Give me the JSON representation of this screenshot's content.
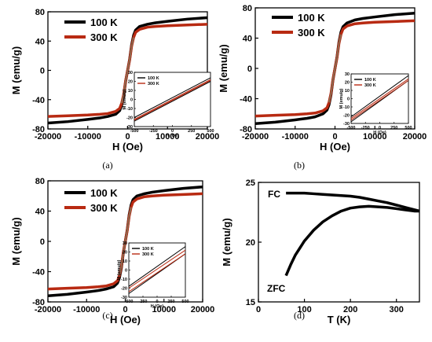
{
  "figure": {
    "captions": [
      "(a)",
      "(b)",
      "(c)",
      "(d)"
    ]
  },
  "colors": {
    "series_100K": "#000000",
    "series_300K": "#b82a12",
    "series_300K_light": "#8c6a50",
    "axis": "#000000"
  },
  "chart_data": [
    {
      "type": "line",
      "caption": "(a)",
      "xlabel": "H (Oe)",
      "ylabel": "M (emu/g)",
      "xlim": [
        -20000,
        20000
      ],
      "ylim": [
        -80,
        80
      ],
      "xticks": [
        -20000,
        -10000,
        0,
        10000,
        20000
      ],
      "yticks": [
        -80,
        -40,
        0,
        40,
        80
      ],
      "legend_position": "top-left",
      "series": [
        {
          "name": "100 K",
          "x": [
            -20000,
            -15000,
            -10000,
            -7000,
            -5000,
            -3000,
            -2000,
            -1500,
            -1000,
            -500,
            0,
            500,
            1000,
            1500,
            2000,
            3000,
            5000,
            7000,
            10000,
            15000,
            20000
          ],
          "y": [
            -72,
            -70,
            -67,
            -65,
            -63,
            -60,
            -55,
            -48,
            -35,
            -15,
            0,
            15,
            35,
            48,
            55,
            60,
            63,
            65,
            67,
            70,
            72
          ]
        },
        {
          "name": "300 K",
          "x": [
            -20000,
            -15000,
            -10000,
            -7000,
            -5000,
            -3000,
            -2000,
            -1500,
            -1000,
            -500,
            0,
            500,
            1000,
            1500,
            2000,
            3000,
            5000,
            7000,
            10000,
            15000,
            20000
          ],
          "y": [
            -63,
            -62,
            -61,
            -60,
            -59,
            -56,
            -52,
            -45,
            -33,
            -14,
            0,
            14,
            33,
            45,
            52,
            56,
            59,
            60,
            61,
            62,
            63
          ]
        }
      ],
      "inset": {
        "xlabel": "H (Oe)",
        "ylabel": "M (emu/g)",
        "xlim": [
          -500,
          500
        ],
        "ylim": [
          -30,
          30
        ],
        "xticks": [
          -500,
          -250,
          0,
          250,
          500
        ],
        "yticks": [
          -30,
          -20,
          -10,
          0,
          10,
          20,
          30
        ],
        "series": [
          {
            "name": "100 K",
            "x": [
              -500,
              500
            ],
            "y_up": [
              -20,
              24
            ],
            "y_down": [
              -24,
              20
            ]
          },
          {
            "name": "300 K",
            "x": [
              -500,
              500
            ],
            "y_up": [
              -22,
              22
            ],
            "y_down": [
              -23,
              21
            ]
          }
        ]
      }
    },
    {
      "type": "line",
      "caption": "(b)",
      "xlabel": "H (Oe)",
      "ylabel": "M (emu/g)",
      "xlim": [
        -20000,
        20000
      ],
      "ylim": [
        -80,
        80
      ],
      "xticks": [
        -20000,
        -10000,
        0,
        10000,
        20000
      ],
      "yticks": [
        -80,
        -40,
        0,
        40,
        80
      ],
      "legend_position": "top-left",
      "series": [
        {
          "name": "100 K",
          "x": [
            -20000,
            -15000,
            -10000,
            -7000,
            -5000,
            -3000,
            -2000,
            -1500,
            -1000,
            -500,
            0,
            500,
            1000,
            1500,
            2000,
            3000,
            5000,
            7000,
            10000,
            15000,
            20000
          ],
          "y": [
            -73,
            -71,
            -68,
            -66,
            -64,
            -60,
            -55,
            -48,
            -35,
            -15,
            0,
            15,
            35,
            48,
            55,
            60,
            64,
            66,
            68,
            71,
            73
          ]
        },
        {
          "name": "300 K",
          "x": [
            -20000,
            -15000,
            -10000,
            -7000,
            -5000,
            -3000,
            -2000,
            -1500,
            -1000,
            -500,
            0,
            500,
            1000,
            1500,
            2000,
            3000,
            5000,
            7000,
            10000,
            15000,
            20000
          ],
          "y": [
            -63,
            -62,
            -61,
            -60,
            -59,
            -56,
            -52,
            -45,
            -33,
            -14,
            0,
            14,
            33,
            45,
            52,
            56,
            59,
            60,
            61,
            62,
            63
          ]
        }
      ],
      "inset": {
        "xlabel": "H (Oe)",
        "ylabel": "M (emu/g)",
        "xlim": [
          -500,
          500
        ],
        "ylim": [
          -30,
          30
        ],
        "xticks": [
          -500,
          -250,
          0,
          250,
          500
        ],
        "yticks": [
          -30,
          -20,
          -10,
          0,
          10,
          20,
          30
        ],
        "series": [
          {
            "name": "100 K",
            "x": [
              -500,
              500
            ],
            "y_up": [
              -22,
              28
            ],
            "y_down": [
              -28,
              22
            ]
          },
          {
            "name": "300 K",
            "x": [
              -500,
              500
            ],
            "y_up": [
              -24,
              24
            ],
            "y_down": [
              -26,
              22
            ]
          }
        ]
      }
    },
    {
      "type": "line",
      "caption": "(c)",
      "xlabel": "H (Oe)",
      "ylabel": "M (emu/g)",
      "xlim": [
        -20000,
        20000
      ],
      "ylim": [
        -80,
        80
      ],
      "xticks": [
        -20000,
        -10000,
        0,
        10000,
        20000
      ],
      "yticks": [
        -80,
        -40,
        0,
        40,
        80
      ],
      "legend_position": "top-left",
      "series": [
        {
          "name": "100 K",
          "x": [
            -20000,
            -15000,
            -10000,
            -7000,
            -5000,
            -3000,
            -2000,
            -1500,
            -1000,
            -500,
            0,
            500,
            1000,
            1500,
            2000,
            3000,
            5000,
            7000,
            10000,
            15000,
            20000
          ],
          "y": [
            -72,
            -70,
            -67,
            -65,
            -63,
            -60,
            -55,
            -48,
            -35,
            -15,
            0,
            15,
            35,
            48,
            55,
            60,
            63,
            65,
            67,
            70,
            72
          ]
        },
        {
          "name": "300 K",
          "x": [
            -20000,
            -15000,
            -10000,
            -7000,
            -5000,
            -3000,
            -2000,
            -1500,
            -1000,
            -500,
            0,
            500,
            1000,
            1500,
            2000,
            3000,
            5000,
            7000,
            10000,
            15000,
            20000
          ],
          "y": [
            -63,
            -62,
            -61,
            -60,
            -59,
            -56,
            -52,
            -45,
            -33,
            -14,
            0,
            14,
            33,
            45,
            52,
            56,
            59,
            60,
            61,
            62,
            63
          ]
        }
      ],
      "inset": {
        "xlabel": "H (Oe)",
        "ylabel": "M (emu/g)",
        "xlim": [
          -500,
          500
        ],
        "ylim": [
          -30,
          30
        ],
        "xticks": [
          -500,
          -250,
          0,
          250,
          500
        ],
        "yticks": [
          -30,
          -20,
          -10,
          0,
          10,
          20,
          30
        ],
        "series": [
          {
            "name": "100 K",
            "x": [
              -500,
              500
            ],
            "y_up": [
              -18,
              26
            ],
            "y_down": [
              -26,
              18
            ]
          },
          {
            "name": "300 K",
            "x": [
              -500,
              500
            ],
            "y_up": [
              -20,
              22
            ],
            "y_down": [
              -24,
              18
            ]
          }
        ]
      }
    },
    {
      "type": "line",
      "caption": "(d)",
      "xlabel": "T (K)",
      "ylabel": "M (emu/g)",
      "xlim": [
        0,
        350
      ],
      "ylim": [
        15,
        25
      ],
      "xticks": [
        0,
        100,
        200,
        300
      ],
      "yticks": [
        15,
        20,
        25
      ],
      "series": [
        {
          "name": "FC",
          "x": [
            60,
            80,
            100,
            120,
            140,
            160,
            180,
            200,
            220,
            240,
            260,
            280,
            300,
            320,
            340,
            350
          ],
          "y": [
            24.1,
            24.1,
            24.1,
            24.05,
            24.0,
            23.95,
            23.9,
            23.85,
            23.75,
            23.6,
            23.45,
            23.3,
            23.1,
            22.9,
            22.7,
            22.6
          ]
        },
        {
          "name": "ZFC",
          "x": [
            60,
            70,
            80,
            100,
            120,
            140,
            160,
            180,
            200,
            220,
            240,
            260,
            280,
            300,
            320,
            340,
            350
          ],
          "y": [
            17.2,
            18.1,
            18.9,
            20.1,
            21.0,
            21.7,
            22.2,
            22.6,
            22.85,
            22.95,
            23.0,
            22.95,
            22.9,
            22.8,
            22.7,
            22.6,
            22.6
          ]
        }
      ]
    }
  ]
}
